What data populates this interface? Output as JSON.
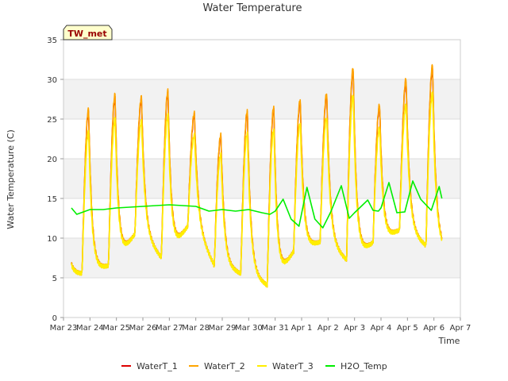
{
  "chart_data": {
    "type": "line",
    "title": "Water Temperature",
    "xlabel": "Time",
    "ylabel": "Water Temperature (C)",
    "station_label": "TW_met",
    "ylim": [
      0,
      35
    ],
    "yticks": [
      0,
      5,
      10,
      15,
      20,
      25,
      30,
      35
    ],
    "xlim": [
      0,
      15
    ],
    "xticks": [
      {
        "day": 0,
        "label": "Mar 23"
      },
      {
        "day": 1,
        "label": "Mar 24"
      },
      {
        "day": 2,
        "label": "Mar 25"
      },
      {
        "day": 3,
        "label": "Mar 26"
      },
      {
        "day": 4,
        "label": "Mar 27"
      },
      {
        "day": 5,
        "label": "Mar 28"
      },
      {
        "day": 6,
        "label": "Mar 29"
      },
      {
        "day": 7,
        "label": "Mar 30"
      },
      {
        "day": 8,
        "label": "Mar 31"
      },
      {
        "day": 9,
        "label": "Apr 1"
      },
      {
        "day": 10,
        "label": "Apr 2"
      },
      {
        "day": 11,
        "label": "Apr 3"
      },
      {
        "day": 12,
        "label": "Apr 4"
      },
      {
        "day": 13,
        "label": "Apr 5"
      },
      {
        "day": 14,
        "label": "Apr 6"
      },
      {
        "day": 15,
        "label": "Apr 7"
      }
    ],
    "bands": [
      [
        5,
        10
      ],
      [
        15,
        20
      ],
      [
        25,
        30
      ]
    ],
    "daily_extremes": {
      "start_day": 0.3,
      "end_day": 14.3,
      "peaks": [
        26,
        27.8,
        27.5,
        28.3,
        25.5,
        22.8,
        25.8,
        26.3,
        27.2,
        28,
        31.2,
        26.6,
        29.8,
        31.5
      ],
      "troughs": [
        5.5,
        6.5,
        10.5,
        7.5,
        11.5,
        6.5,
        5.5,
        4,
        8.3,
        9.5,
        7.2,
        9.4,
        11,
        9,
        8.2
      ],
      "series_scale": {
        "WaterT_1": 1.0,
        "WaterT_2": 1.01,
        "WaterT_3": 0.9
      }
    },
    "series": [
      {
        "name": "WaterT_1",
        "color": "#dd0000"
      },
      {
        "name": "WaterT_2",
        "color": "#ffa500"
      },
      {
        "name": "WaterT_3",
        "color": "#ffee00"
      },
      {
        "name": "H2O_Temp",
        "color": "#00ee00",
        "x": [
          0.3,
          0.5,
          1,
          1.5,
          2,
          3,
          3.5,
          4,
          4.5,
          5,
          5.5,
          6,
          6.5,
          7,
          7.5,
          7.8,
          8,
          8.3,
          8.6,
          8.9,
          9.2,
          9.5,
          9.8,
          10.1,
          10.5,
          10.8,
          11,
          11.5,
          11.7,
          11.9,
          12,
          12.3,
          12.6,
          12.9,
          13.2,
          13.5,
          13.9,
          14.2,
          14.3
        ],
        "values": [
          13.8,
          13.0,
          13.6,
          13.6,
          13.8,
          14.0,
          14.1,
          14.2,
          14.1,
          14.0,
          13.4,
          13.6,
          13.4,
          13.6,
          13.2,
          13.0,
          13.4,
          14.9,
          12.4,
          11.5,
          16.4,
          12.4,
          11.3,
          13.3,
          16.6,
          12.5,
          13.2,
          14.8,
          13.5,
          13.4,
          13.8,
          17.0,
          13.2,
          13.3,
          17.2,
          14.9,
          13.5,
          16.5,
          15.0
        ]
      }
    ]
  }
}
